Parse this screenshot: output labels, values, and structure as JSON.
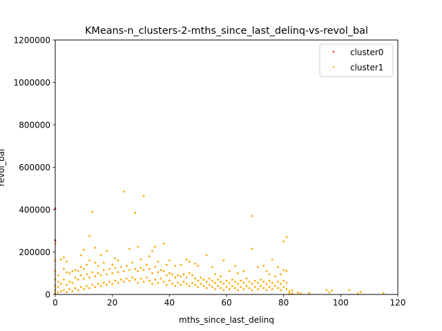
{
  "chart_data": {
    "type": "scatter",
    "title": "KMeans-n_clusters-2-mths_since_last_delinq-vs-revol_bal",
    "xlabel": "mths_since_last_delinq",
    "ylabel": "revol_bal",
    "xlim": [
      0,
      120
    ],
    "ylim": [
      0,
      1200000
    ],
    "xticks": [
      0,
      20,
      40,
      60,
      80,
      100,
      120
    ],
    "yticks": [
      0,
      200000,
      400000,
      600000,
      800000,
      1000000,
      1200000
    ],
    "xtick_labels": [
      "0",
      "20",
      "40",
      "60",
      "80",
      "100",
      "120"
    ],
    "ytick_labels": [
      "0",
      "200000",
      "400000",
      "600000",
      "800000",
      "1000000",
      "1200000"
    ],
    "grid": false,
    "legend_position": "top-right",
    "series": [
      {
        "name": "cluster0",
        "color": "#ff0000",
        "points": [
          [
            0,
            255000
          ],
          [
            0,
            405000
          ]
        ]
      },
      {
        "name": "cluster1",
        "color": "#ffa500",
        "points": [
          [
            0,
            5000
          ],
          [
            0,
            20000
          ],
          [
            0,
            40000
          ],
          [
            0,
            70000
          ],
          [
            0,
            110000
          ],
          [
            0,
            160000
          ],
          [
            0,
            240000
          ],
          [
            1,
            10000
          ],
          [
            1,
            35000
          ],
          [
            1,
            60000
          ],
          [
            1,
            90000
          ],
          [
            2,
            15000
          ],
          [
            2,
            50000
          ],
          [
            2,
            165000
          ],
          [
            3,
            20000
          ],
          [
            3,
            70000
          ],
          [
            3,
            120000
          ],
          [
            3,
            175000
          ],
          [
            4,
            10000
          ],
          [
            4,
            45000
          ],
          [
            4,
            105000
          ],
          [
            4,
            155000
          ],
          [
            5,
            25000
          ],
          [
            5,
            60000
          ],
          [
            5,
            100000
          ],
          [
            6,
            15000
          ],
          [
            6,
            55000
          ],
          [
            6,
            110000
          ],
          [
            7,
            30000
          ],
          [
            7,
            80000
          ],
          [
            7,
            115000
          ],
          [
            8,
            20000
          ],
          [
            8,
            70000
          ],
          [
            8,
            110000
          ],
          [
            9,
            35000
          ],
          [
            9,
            90000
          ],
          [
            9,
            130000
          ],
          [
            9,
            185000
          ],
          [
            10,
            25000
          ],
          [
            10,
            75000
          ],
          [
            10,
            120000
          ],
          [
            10,
            210000
          ],
          [
            11,
            40000
          ],
          [
            11,
            95000
          ],
          [
            11,
            140000
          ],
          [
            12,
            30000
          ],
          [
            12,
            80000
          ],
          [
            12,
            160000
          ],
          [
            12,
            275000
          ],
          [
            13,
            45000
          ],
          [
            13,
            105000
          ],
          [
            13,
            390000
          ],
          [
            14,
            35000
          ],
          [
            14,
            85000
          ],
          [
            14,
            150000
          ],
          [
            14,
            220000
          ],
          [
            15,
            50000
          ],
          [
            15,
            100000
          ],
          [
            15,
            135000
          ],
          [
            16,
            40000
          ],
          [
            16,
            90000
          ],
          [
            16,
            185000
          ],
          [
            17,
            55000
          ],
          [
            17,
            115000
          ],
          [
            17,
            150000
          ],
          [
            18,
            45000
          ],
          [
            18,
            95000
          ],
          [
            18,
            205000
          ],
          [
            19,
            60000
          ],
          [
            19,
            120000
          ],
          [
            20,
            50000
          ],
          [
            20,
            100000
          ],
          [
            20,
            140000
          ],
          [
            21,
            65000
          ],
          [
            21,
            125000
          ],
          [
            21,
            170000
          ],
          [
            22,
            55000
          ],
          [
            22,
            105000
          ],
          [
            22,
            160000
          ],
          [
            23,
            70000
          ],
          [
            23,
            130000
          ],
          [
            24,
            60000
          ],
          [
            24,
            110000
          ],
          [
            24,
            485000
          ],
          [
            25,
            75000
          ],
          [
            25,
            135000
          ],
          [
            26,
            65000
          ],
          [
            26,
            115000
          ],
          [
            26,
            215000
          ],
          [
            27,
            80000
          ],
          [
            27,
            150000
          ],
          [
            28,
            70000
          ],
          [
            28,
            120000
          ],
          [
            28,
            385000
          ],
          [
            29,
            55000
          ],
          [
            29,
            110000
          ],
          [
            29,
            225000
          ],
          [
            30,
            75000
          ],
          [
            30,
            125000
          ],
          [
            30,
            165000
          ],
          [
            31,
            60000
          ],
          [
            31,
            115000
          ],
          [
            31,
            465000
          ],
          [
            32,
            80000
          ],
          [
            32,
            140000
          ],
          [
            33,
            65000
          ],
          [
            33,
            120000
          ],
          [
            33,
            180000
          ],
          [
            34,
            50000
          ],
          [
            34,
            100000
          ],
          [
            34,
            205000
          ],
          [
            35,
            70000
          ],
          [
            35,
            130000
          ],
          [
            35,
            225000
          ],
          [
            36,
            55000
          ],
          [
            36,
            105000
          ],
          [
            36,
            155000
          ],
          [
            37,
            75000
          ],
          [
            37,
            115000
          ],
          [
            38,
            60000
          ],
          [
            38,
            110000
          ],
          [
            38,
            240000
          ],
          [
            39,
            45000
          ],
          [
            39,
            90000
          ],
          [
            39,
            140000
          ],
          [
            40,
            65000
          ],
          [
            40,
            100000
          ],
          [
            40,
            160000
          ],
          [
            41,
            50000
          ],
          [
            41,
            95000
          ],
          [
            42,
            40000
          ],
          [
            42,
            80000
          ],
          [
            42,
            135000
          ],
          [
            43,
            55000
          ],
          [
            43,
            90000
          ],
          [
            44,
            45000
          ],
          [
            44,
            85000
          ],
          [
            44,
            140000
          ],
          [
            45,
            60000
          ],
          [
            45,
            95000
          ],
          [
            46,
            50000
          ],
          [
            46,
            80000
          ],
          [
            46,
            165000
          ],
          [
            47,
            40000
          ],
          [
            47,
            100000
          ],
          [
            47,
            155000
          ],
          [
            48,
            55000
          ],
          [
            48,
            90000
          ],
          [
            49,
            45000
          ],
          [
            49,
            75000
          ],
          [
            49,
            145000
          ],
          [
            50,
            35000
          ],
          [
            50,
            65000
          ],
          [
            50,
            135000
          ],
          [
            51,
            50000
          ],
          [
            51,
            80000
          ],
          [
            52,
            40000
          ],
          [
            52,
            70000
          ],
          [
            53,
            30000
          ],
          [
            53,
            60000
          ],
          [
            53,
            185000
          ],
          [
            54,
            45000
          ],
          [
            54,
            75000
          ],
          [
            55,
            35000
          ],
          [
            55,
            65000
          ],
          [
            55,
            130000
          ],
          [
            56,
            25000
          ],
          [
            56,
            55000
          ],
          [
            56,
            95000
          ],
          [
            57,
            40000
          ],
          [
            57,
            70000
          ],
          [
            58,
            30000
          ],
          [
            58,
            60000
          ],
          [
            58,
            85000
          ],
          [
            59,
            20000
          ],
          [
            59,
            50000
          ],
          [
            59,
            160000
          ],
          [
            60,
            35000
          ],
          [
            60,
            65000
          ],
          [
            61,
            25000
          ],
          [
            61,
            55000
          ],
          [
            61,
            110000
          ],
          [
            62,
            40000
          ],
          [
            62,
            70000
          ],
          [
            63,
            30000
          ],
          [
            63,
            60000
          ],
          [
            63,
            135000
          ],
          [
            64,
            20000
          ],
          [
            64,
            50000
          ],
          [
            64,
            100000
          ],
          [
            65,
            35000
          ],
          [
            65,
            65000
          ],
          [
            66,
            25000
          ],
          [
            66,
            55000
          ],
          [
            66,
            110000
          ],
          [
            67,
            40000
          ],
          [
            67,
            75000
          ],
          [
            68,
            30000
          ],
          [
            68,
            60000
          ],
          [
            69,
            20000
          ],
          [
            69,
            50000
          ],
          [
            69,
            215000
          ],
          [
            69,
            370000
          ],
          [
            70,
            35000
          ],
          [
            70,
            65000
          ],
          [
            71,
            25000
          ],
          [
            71,
            55000
          ],
          [
            71,
            130000
          ],
          [
            72,
            40000
          ],
          [
            72,
            70000
          ],
          [
            73,
            30000
          ],
          [
            73,
            60000
          ],
          [
            73,
            135000
          ],
          [
            74,
            20000
          ],
          [
            74,
            50000
          ],
          [
            74,
            110000
          ],
          [
            75,
            35000
          ],
          [
            75,
            65000
          ],
          [
            75,
            95000
          ],
          [
            76,
            25000
          ],
          [
            76,
            55000
          ],
          [
            76,
            165000
          ],
          [
            77,
            40000
          ],
          [
            77,
            85000
          ],
          [
            78,
            30000
          ],
          [
            78,
            60000
          ],
          [
            78,
            130000
          ],
          [
            79,
            20000
          ],
          [
            79,
            50000
          ],
          [
            79,
            95000
          ],
          [
            80,
            35000
          ],
          [
            80,
            65000
          ],
          [
            80,
            115000
          ],
          [
            80,
            250000
          ],
          [
            81,
            25000
          ],
          [
            81,
            55000
          ],
          [
            81,
            110000
          ],
          [
            81,
            270000
          ],
          [
            82,
            5000
          ],
          [
            82,
            15000
          ],
          [
            83,
            3000
          ],
          [
            83,
            20000
          ],
          [
            85,
            8000
          ],
          [
            86,
            4000
          ],
          [
            89,
            6000
          ],
          [
            95,
            20000
          ],
          [
            96,
            10000
          ],
          [
            97,
            18000
          ],
          [
            103,
            20000
          ],
          [
            106,
            5000
          ],
          [
            107,
            12000
          ],
          [
            115,
            6000
          ]
        ]
      }
    ]
  }
}
